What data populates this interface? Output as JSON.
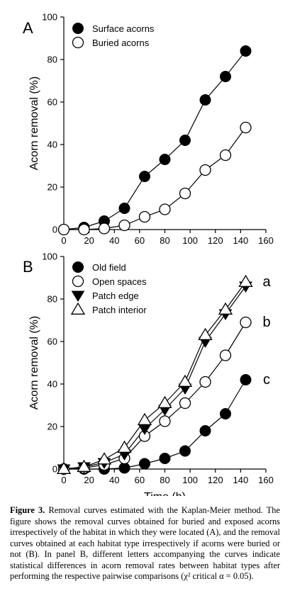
{
  "chart_data": [
    {
      "panel": "A",
      "type": "line",
      "ylabel": "Acorn removal (%)",
      "xlabel": "",
      "xlim": [
        0,
        160
      ],
      "ylim": [
        0,
        100
      ],
      "xticks": [
        "0",
        "20",
        "40",
        "60",
        "80",
        "100",
        "120",
        "140",
        "160"
      ],
      "yticks": [
        "0",
        "20",
        "40",
        "60",
        "80",
        "100"
      ],
      "legend_position": "top-left",
      "series": [
        {
          "name": "Surface acorns",
          "marker": "filled-circle",
          "x": [
            0,
            16,
            32,
            48,
            64,
            80,
            96,
            112,
            128,
            144
          ],
          "y": [
            0,
            1,
            4,
            10,
            25,
            33,
            42,
            61,
            72,
            84
          ]
        },
        {
          "name": "Buried acorns",
          "marker": "open-circle",
          "x": [
            0,
            16,
            32,
            48,
            64,
            80,
            96,
            112,
            128,
            144
          ],
          "y": [
            0,
            0,
            0.5,
            2,
            6,
            9.5,
            17,
            28,
            35,
            48
          ]
        }
      ]
    },
    {
      "panel": "B",
      "type": "line",
      "ylabel": "Acorn removal (%)",
      "xlabel": "Time (h)",
      "xlim": [
        0,
        160
      ],
      "ylim": [
        0,
        100
      ],
      "xticks": [
        "0",
        "20",
        "40",
        "60",
        "80",
        "100",
        "120",
        "140",
        "160"
      ],
      "yticks": [
        "0",
        "20",
        "40",
        "60",
        "80",
        "100"
      ],
      "legend_position": "top-left",
      "series": [
        {
          "name": "Old field",
          "marker": "filled-circle",
          "x": [
            0,
            16,
            32,
            48,
            64,
            80,
            96,
            112,
            128,
            144
          ],
          "y": [
            0,
            0,
            0,
            0.5,
            2.5,
            5,
            8.5,
            18,
            26,
            42
          ]
        },
        {
          "name": "Open spaces",
          "marker": "open-circle",
          "x": [
            0,
            16,
            32,
            48,
            64,
            80,
            96,
            112,
            128,
            144
          ],
          "y": [
            0,
            0.5,
            2,
            5,
            15.5,
            22.5,
            31,
            41,
            53.5,
            69
          ]
        },
        {
          "name": "Patch edge",
          "marker": "filled-triangle-down",
          "x": [
            0,
            16,
            32,
            48,
            64,
            80,
            96,
            112,
            128,
            144
          ],
          "y": [
            0,
            1,
            3,
            7,
            19,
            28,
            38,
            60,
            73,
            86
          ]
        },
        {
          "name": "Patch interior",
          "marker": "open-triangle-up",
          "x": [
            0,
            16,
            32,
            48,
            64,
            80,
            96,
            112,
            128,
            144
          ],
          "y": [
            0,
            1,
            4.5,
            10,
            23,
            31,
            41,
            63,
            75,
            88
          ]
        }
      ],
      "annotations": [
        "a",
        "b",
        "c"
      ]
    }
  ],
  "caption": {
    "label": "Figure 3.",
    "text": " Removal curves estimated with the Kaplan-Meier method. The figure shows the removal curves obtained for buried and exposed acorns irrespectively of the habitat in which they were located (A), and the removal curves obtained at each habitat type irrespectively if acorns were buried or not (B). In panel B, different letters accompanying the curves indicate statistical differences in acorn removal rates between habitat types after performing the respective pairwise comparisons",
    "last_line": "(χ² critical α = 0.05)."
  }
}
